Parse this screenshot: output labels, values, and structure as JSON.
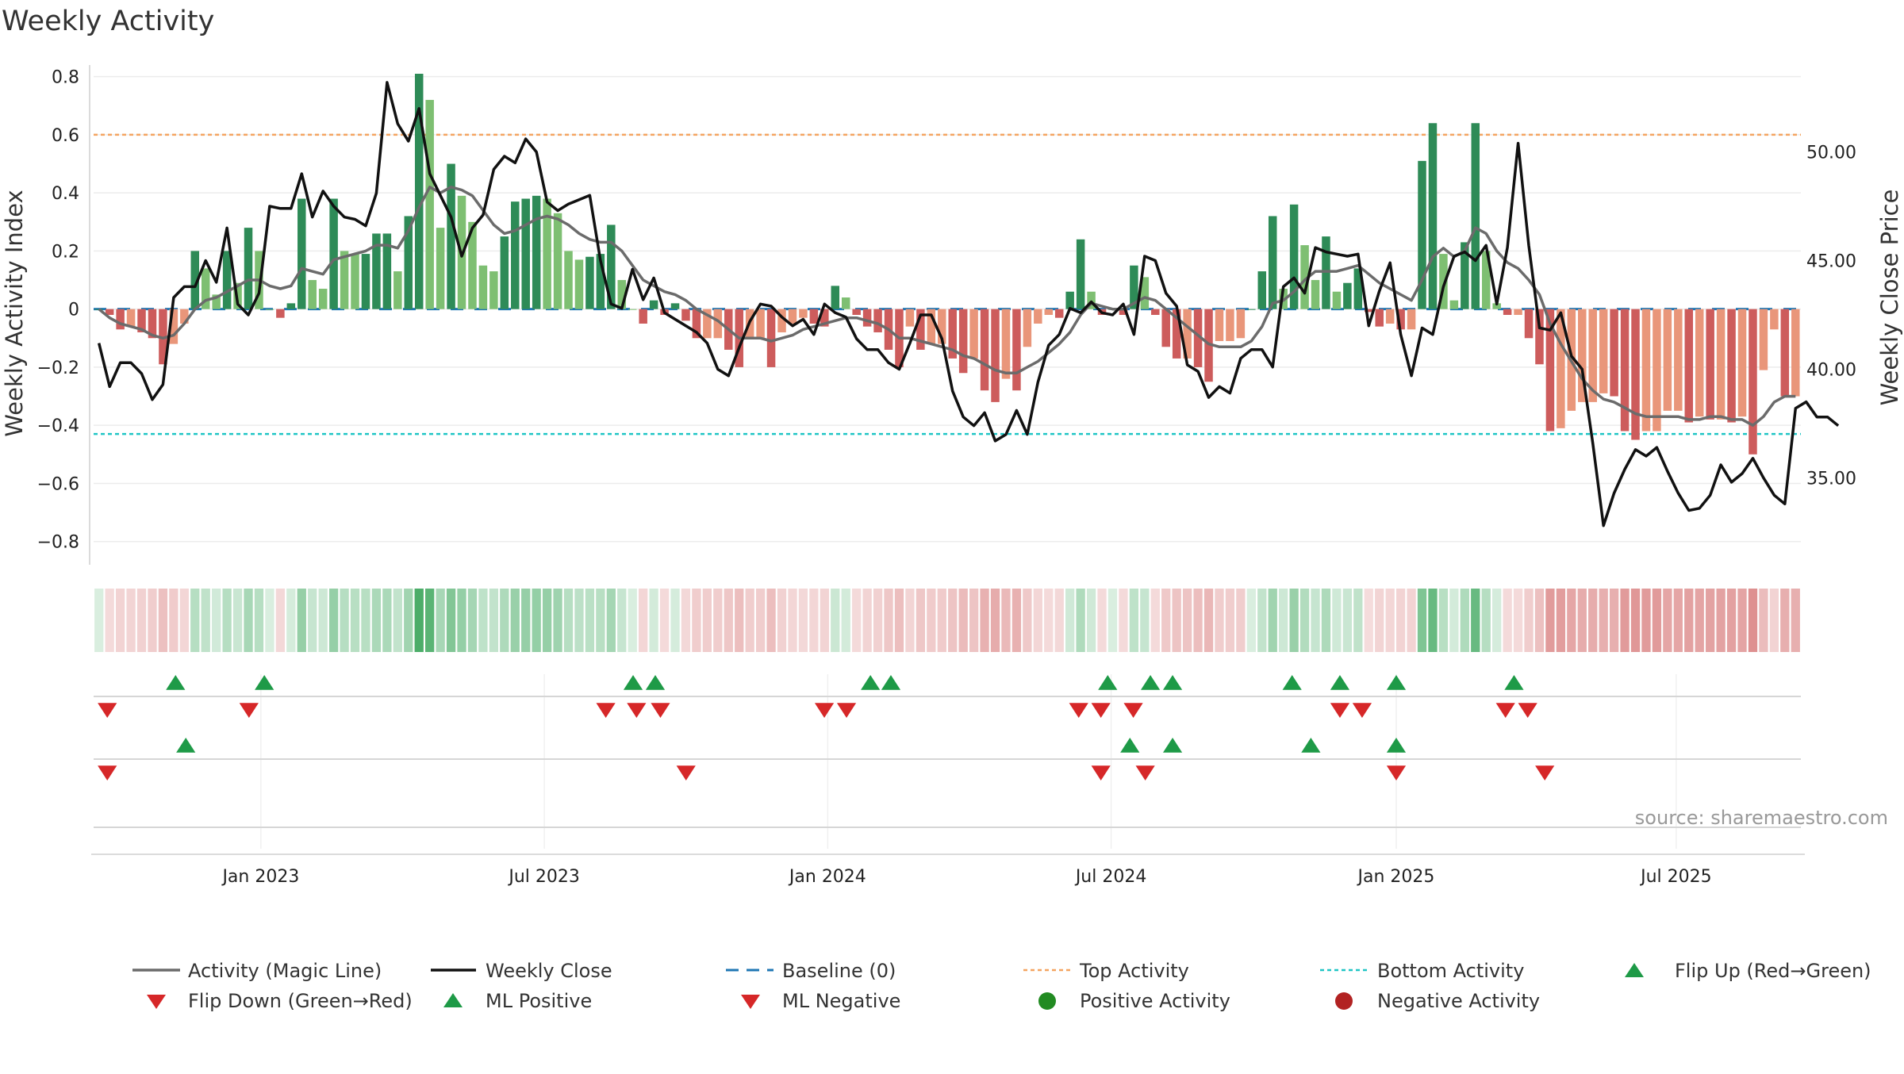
{
  "chart_data": {
    "type": "bar",
    "title": "Weekly Activity",
    "ylabel": "Weekly Activity Index",
    "y2label": "Weekly Close Price",
    "ylim": [
      -0.88,
      0.84
    ],
    "y2lim": [
      31.0,
      54.0
    ],
    "yticks": [
      "0.8",
      "0.6",
      "0.4",
      "0.2",
      "0",
      "−0.2",
      "−0.4",
      "−0.6",
      "−0.8"
    ],
    "y2ticks": [
      "50.00",
      "45.00",
      "40.00",
      "35.00"
    ],
    "xticks": [
      "Jan 2023",
      "Jul 2023",
      "Jan 2024",
      "Jul 2024",
      "Jan 2025",
      "Jul 2025"
    ],
    "top_activity": 0.6,
    "bottom_activity": -0.43,
    "source": "source: sharemaestro.com",
    "colors": {
      "strong_green": "#2e8b57",
      "light_green": "#7ebf72",
      "strong_red": "#cd5c5c",
      "light_red": "#e9967a",
      "magic_line": "#6b6b6b",
      "close_line": "#111111",
      "baseline": "#1f77b4",
      "top_line": "#f4a460",
      "bottom_line": "#20c5c5",
      "marker_up": "#1e9a47",
      "marker_down": "#d62728",
      "pos_dot": "#228b22",
      "neg_dot": "#b22222"
    },
    "activity": [
      0.0,
      -0.02,
      -0.07,
      -0.06,
      -0.08,
      -0.1,
      -0.19,
      -0.12,
      -0.05,
      0.2,
      0.14,
      0.05,
      0.2,
      0.09,
      0.28,
      0.2,
      0.0,
      -0.03,
      0.02,
      0.38,
      0.1,
      0.07,
      0.38,
      0.2,
      0.19,
      0.19,
      0.26,
      0.26,
      0.13,
      0.32,
      0.81,
      0.72,
      0.28,
      0.5,
      0.39,
      0.3,
      0.15,
      0.13,
      0.25,
      0.37,
      0.38,
      0.39,
      0.38,
      0.33,
      0.2,
      0.17,
      0.18,
      0.19,
      0.29,
      0.1,
      0.0,
      -0.05,
      0.03,
      -0.02,
      0.02,
      -0.04,
      -0.1,
      -0.1,
      -0.1,
      -0.14,
      -0.2,
      -0.1,
      -0.1,
      -0.2,
      -0.08,
      -0.05,
      -0.03,
      -0.05,
      -0.06,
      0.08,
      0.04,
      -0.02,
      -0.06,
      -0.08,
      -0.14,
      -0.2,
      -0.06,
      -0.14,
      -0.12,
      -0.12,
      -0.17,
      -0.22,
      -0.17,
      -0.28,
      -0.32,
      -0.24,
      -0.28,
      -0.13,
      -0.05,
      -0.02,
      -0.03,
      0.06,
      0.24,
      0.06,
      -0.02,
      0.0,
      -0.02,
      0.15,
      0.11,
      -0.02,
      -0.13,
      -0.17,
      -0.17,
      -0.2,
      -0.25,
      -0.11,
      -0.11,
      -0.1,
      0.0,
      0.13,
      0.32,
      0.07,
      0.36,
      0.22,
      0.1,
      0.25,
      0.06,
      0.09,
      0.14,
      -0.01,
      -0.06,
      -0.05,
      -0.07,
      -0.07,
      0.51,
      0.64,
      0.19,
      0.03,
      0.23,
      0.64,
      0.2,
      0.02,
      -0.02,
      -0.02,
      -0.1,
      -0.19,
      -0.42,
      -0.41,
      -0.35,
      -0.32,
      -0.32,
      -0.29,
      -0.3,
      -0.42,
      -0.45,
      -0.42,
      -0.42,
      -0.35,
      -0.35,
      -0.39,
      -0.37,
      -0.38,
      -0.38,
      -0.39,
      -0.37,
      -0.5,
      -0.21,
      -0.07,
      -0.3,
      -0.3
    ],
    "magic_line": [
      0.0,
      -0.03,
      -0.05,
      -0.06,
      -0.07,
      -0.09,
      -0.1,
      -0.09,
      -0.05,
      0.0,
      0.03,
      0.04,
      0.06,
      0.08,
      0.1,
      0.1,
      0.08,
      0.07,
      0.08,
      0.14,
      0.13,
      0.12,
      0.17,
      0.18,
      0.19,
      0.2,
      0.22,
      0.22,
      0.21,
      0.27,
      0.35,
      0.42,
      0.4,
      0.42,
      0.41,
      0.39,
      0.34,
      0.29,
      0.26,
      0.27,
      0.29,
      0.31,
      0.32,
      0.31,
      0.29,
      0.26,
      0.24,
      0.23,
      0.23,
      0.2,
      0.15,
      0.1,
      0.08,
      0.06,
      0.05,
      0.03,
      0.0,
      -0.02,
      -0.04,
      -0.07,
      -0.1,
      -0.1,
      -0.1,
      -0.11,
      -0.1,
      -0.09,
      -0.07,
      -0.06,
      -0.05,
      -0.04,
      -0.03,
      -0.03,
      -0.04,
      -0.05,
      -0.07,
      -0.1,
      -0.1,
      -0.11,
      -0.12,
      -0.13,
      -0.14,
      -0.16,
      -0.17,
      -0.19,
      -0.21,
      -0.22,
      -0.22,
      -0.2,
      -0.18,
      -0.15,
      -0.12,
      -0.08,
      -0.02,
      0.02,
      0.01,
      0.0,
      0.0,
      0.02,
      0.04,
      0.03,
      0.0,
      -0.03,
      -0.06,
      -0.09,
      -0.12,
      -0.13,
      -0.13,
      -0.13,
      -0.11,
      -0.06,
      0.02,
      0.03,
      0.06,
      0.1,
      0.13,
      0.13,
      0.13,
      0.14,
      0.15,
      0.12,
      0.09,
      0.07,
      0.05,
      0.03,
      0.1,
      0.18,
      0.21,
      0.18,
      0.2,
      0.28,
      0.26,
      0.2,
      0.16,
      0.14,
      0.1,
      0.05,
      -0.05,
      -0.12,
      -0.18,
      -0.24,
      -0.28,
      -0.31,
      -0.32,
      -0.34,
      -0.36,
      -0.37,
      -0.37,
      -0.37,
      -0.37,
      -0.38,
      -0.38,
      -0.37,
      -0.37,
      -0.38,
      -0.38,
      -0.4,
      -0.37,
      -0.32,
      -0.3,
      -0.3
    ],
    "weekly_close": [
      41.2,
      39.2,
      40.3,
      40.3,
      39.8,
      38.6,
      39.3,
      43.3,
      43.8,
      43.8,
      45.0,
      44.0,
      46.5,
      43.0,
      42.5,
      43.5,
      47.5,
      47.4,
      47.4,
      49.0,
      47.0,
      48.2,
      47.5,
      47.0,
      46.9,
      46.6,
      48.1,
      53.2,
      51.3,
      50.5,
      52.0,
      49.0,
      48.0,
      47.0,
      45.2,
      46.5,
      47.1,
      49.2,
      49.8,
      49.5,
      50.6,
      50.0,
      47.7,
      47.3,
      47.6,
      47.8,
      48.0,
      45.0,
      43.0,
      42.8,
      44.6,
      43.2,
      44.2,
      42.6,
      42.3,
      42.0,
      41.7,
      41.2,
      40.0,
      39.7,
      41.0,
      42.2,
      43.0,
      42.9,
      42.4,
      42.0,
      42.3,
      41.6,
      43.0,
      42.6,
      42.4,
      41.4,
      40.9,
      40.9,
      40.3,
      40.0,
      41.2,
      42.5,
      42.5,
      41.4,
      39.0,
      37.8,
      37.4,
      38.0,
      36.7,
      37.0,
      38.1,
      37.0,
      39.4,
      41.1,
      41.6,
      42.8,
      42.6,
      43.1,
      42.6,
      42.5,
      43.0,
      41.6,
      45.2,
      45.0,
      43.5,
      42.9,
      40.2,
      39.9,
      38.7,
      39.2,
      38.9,
      40.5,
      40.9,
      40.9,
      40.1,
      43.8,
      44.2,
      43.5,
      45.6,
      45.4,
      45.3,
      45.2,
      45.3,
      42.0,
      43.6,
      44.9,
      41.6,
      39.7,
      41.9,
      41.6,
      43.8,
      45.2,
      45.4,
      45.0,
      45.7,
      43.0,
      45.6,
      50.4,
      45.7,
      41.9,
      41.8,
      42.6,
      40.6,
      40.0,
      36.6,
      32.8,
      34.3,
      35.4,
      36.3,
      36.0,
      36.4,
      35.3,
      34.3,
      33.5,
      33.6,
      34.2,
      35.6,
      34.8,
      35.2,
      35.9,
      35.0,
      34.2,
      33.8,
      38.2,
      38.5,
      37.8,
      37.8,
      37.4
    ]
  },
  "strip_up_positions": [
    0.048,
    0.1,
    0.316,
    0.329,
    0.455,
    0.467,
    0.594,
    0.619,
    0.632,
    0.702,
    0.73,
    0.763,
    0.832
  ],
  "strip_down_positions": [
    0.008,
    0.091,
    0.3,
    0.318,
    0.332,
    0.428,
    0.441,
    0.577,
    0.59,
    0.609,
    0.73,
    0.743,
    0.827,
    0.84
  ],
  "ml_up_positions": [
    0.054,
    0.607,
    0.632,
    0.713,
    0.763
  ],
  "ml_down_positions": [
    0.008,
    0.347,
    0.59,
    0.616,
    0.763,
    0.85
  ],
  "legend": {
    "magic": "Activity (Magic Line)",
    "close": "Weekly Close",
    "baseline": "Baseline (0)",
    "top": "Top Activity",
    "bottom": "Bottom Activity",
    "flip_up": "Flip Up (Red→Green)",
    "flip_down": "Flip Down (Green→Red)",
    "ml_pos": "ML Positive",
    "ml_neg": "ML Negative",
    "pos_act": "Positive Activity",
    "neg_act": "Negative Activity"
  }
}
